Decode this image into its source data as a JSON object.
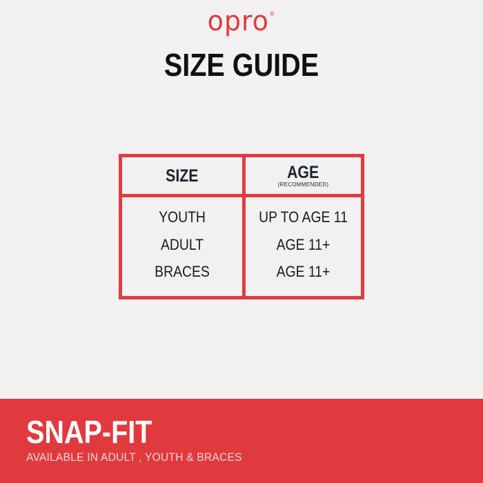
{
  "brand": {
    "logo_text": "opro",
    "trademark": "®"
  },
  "title": "SIZE GUIDE",
  "table": {
    "size_header": "SIZE",
    "age_header": "AGE",
    "age_subheader": "(RECOMMENDED)",
    "rows": [
      {
        "size": "YOUTH",
        "age": "UP TO AGE 11"
      },
      {
        "size": "ADULT",
        "age": "AGE 11+"
      },
      {
        "size": "BRACES",
        "age": "AGE 11+"
      }
    ]
  },
  "footer": {
    "product_name": "SNAP-FIT",
    "availability": "AVAILABLE IN ADULT , YOUTH & BRACES"
  },
  "colors": {
    "accent": "#e13a3e",
    "background": "#f1f1f1",
    "header_text": "#1b2230"
  }
}
